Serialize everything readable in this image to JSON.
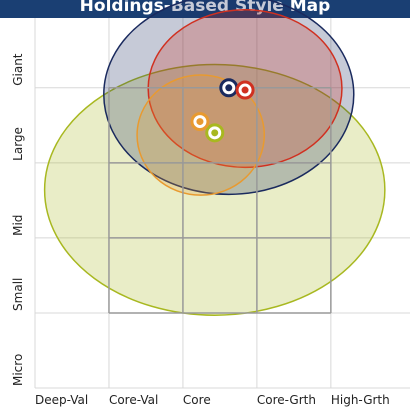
{
  "chart_data": {
    "type": "scatter",
    "title": "Holdings-Based Style Map",
    "xlim": [
      0,
      5.07
    ],
    "ylim": [
      0,
      4.93
    ],
    "xticks": [
      {
        "value": 0,
        "label": "Deep-Val"
      },
      {
        "value": 1,
        "label": "Core-Val"
      },
      {
        "value": 2,
        "label": "Core"
      },
      {
        "value": 3,
        "label": "Core-Grth"
      },
      {
        "value": 4,
        "label": "High-Grth"
      }
    ],
    "yticks": [
      {
        "value": 0,
        "label": "Micro"
      },
      {
        "value": 1,
        "label": "Small"
      },
      {
        "value": 2,
        "label": "Mid"
      },
      {
        "value": 3,
        "label": "Large"
      },
      {
        "value": 4,
        "label": "Giant"
      }
    ],
    "box": {
      "xlim": [
        1,
        4
      ],
      "ylim": [
        1,
        4
      ]
    },
    "points": [
      {
        "color": "#a8b820",
        "x": 2.43,
        "y": 3.4,
        "zone": {
          "cx": 2.43,
          "cy": 2.64,
          "rx": 2.3,
          "ry": 1.67
        }
      },
      {
        "color": "#1a2a5e",
        "x": 2.62,
        "y": 4.0,
        "zone": {
          "cx": 2.62,
          "cy": 3.91,
          "rx": 1.69,
          "ry": 1.33
        }
      },
      {
        "color": "#d03020",
        "x": 2.84,
        "y": 3.97,
        "zone": {
          "cx": 2.84,
          "cy": 3.99,
          "rx": 1.31,
          "ry": 1.05
        }
      },
      {
        "color": "#e89a30",
        "x": 2.23,
        "y": 3.55,
        "zone": {
          "cx": 2.24,
          "cy": 3.37,
          "rx": 0.86,
          "ry": 0.8
        }
      }
    ]
  }
}
